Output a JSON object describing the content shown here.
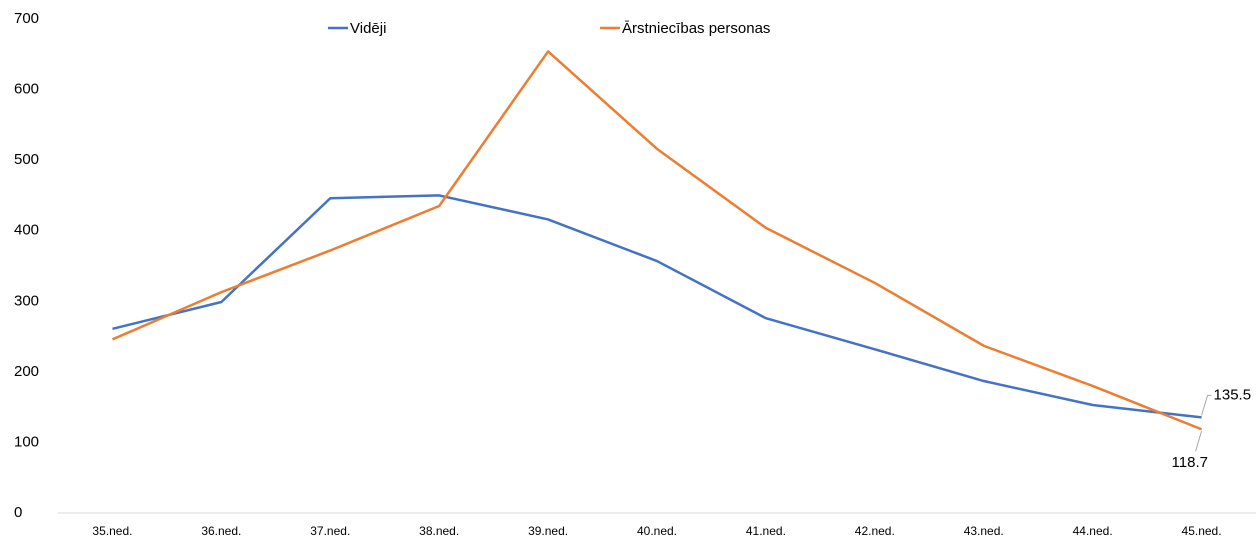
{
  "chart_data": {
    "type": "line",
    "categories": [
      "35.ned.",
      "36.ned.",
      "37.ned.",
      "38.ned.",
      "39.ned.",
      "40.ned.",
      "41.ned.",
      "42.ned.",
      "43.ned.",
      "44.ned.",
      "45.ned."
    ],
    "series": [
      {
        "name": "Vidēji",
        "color": "#4472c4",
        "values": [
          261,
          299,
          446,
          450,
          416,
          357,
          276,
          232,
          187,
          153,
          135.5
        ]
      },
      {
        "name": "Ārstniecības personas",
        "color": "#ed7d31",
        "values": [
          246,
          313,
          372,
          435,
          654,
          516,
          404,
          326,
          237,
          180,
          118.7
        ]
      }
    ],
    "ylim": [
      0,
      700
    ],
    "yticks": [
      0,
      100,
      200,
      300,
      400,
      500,
      600,
      700
    ],
    "grid": false,
    "legend": "top"
  }
}
